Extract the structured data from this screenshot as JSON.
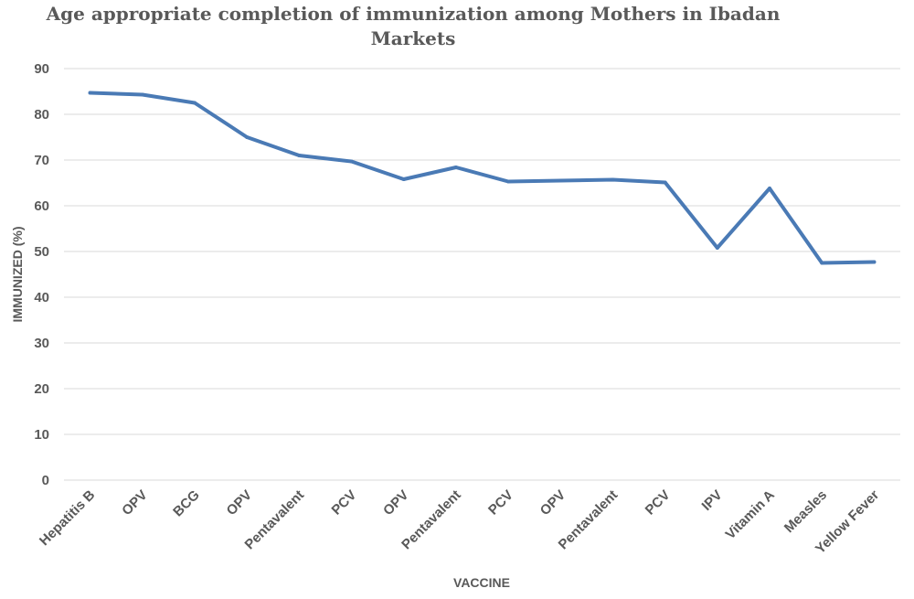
{
  "chart_data": {
    "type": "line",
    "title_lines": [
      "Age appropriate completion of immunization among Mothers in Ibadan",
      "Markets"
    ],
    "xlabel": "VACCINE",
    "ylabel": "IMMUNIZED (%)",
    "ylim": [
      0,
      90
    ],
    "yticks": [
      "0",
      "10",
      "20",
      "30",
      "40",
      "50",
      "60",
      "70",
      "80",
      "90"
    ],
    "grid": true,
    "categories": [
      "Hepatitis B",
      "OPV",
      "BCG",
      "OPV",
      "Pentavalent",
      "PCV",
      "OPV",
      "Pentavalent",
      "PCV",
      "OPV",
      "Pentavalent",
      "PCV",
      "IPV",
      "Vitamin A",
      "Measles",
      "Yellow Fever"
    ],
    "series": [
      {
        "color": "#4a7ab5",
        "values": [
          84.7,
          84.3,
          82.5,
          75.0,
          71.0,
          69.7,
          65.8,
          68.4,
          65.3,
          65.5,
          65.7,
          65.1,
          50.8,
          63.8,
          47.5,
          47.7
        ]
      }
    ]
  }
}
